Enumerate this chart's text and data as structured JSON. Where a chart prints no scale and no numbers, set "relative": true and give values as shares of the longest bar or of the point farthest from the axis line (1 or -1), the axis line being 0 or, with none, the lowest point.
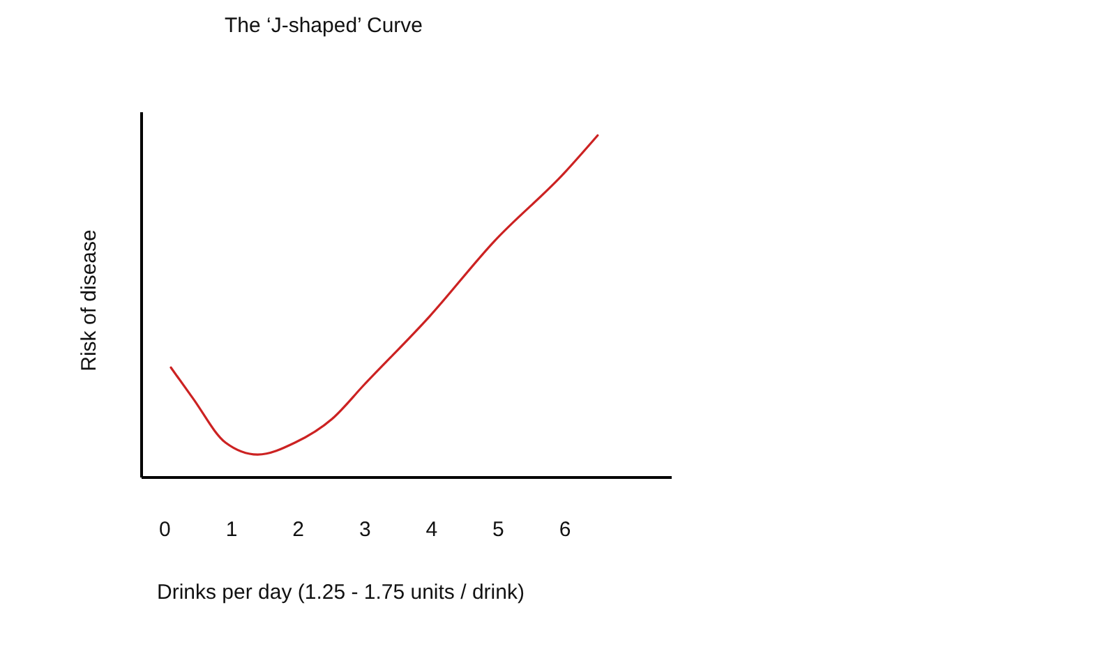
{
  "chart_data": {
    "type": "line",
    "title": "The ‘J-shaped’ Curve",
    "xlabel": "Drinks per day (1.25 - 1.75 units / drink)",
    "ylabel": "Risk of disease",
    "relative": true,
    "xlim": [
      -0.35,
      7.6
    ],
    "xticks": [
      0,
      1,
      2,
      3,
      4,
      5,
      6
    ],
    "grid": false,
    "series": [
      {
        "color": "#cc2222",
        "x": [
          0.1,
          0.43,
          0.92,
          1.4,
          1.96,
          2.52,
          3.0,
          3.98,
          4.95,
          6.0,
          6.5
        ],
        "values": [
          0.32,
          0.23,
          0.1,
          0.065,
          0.1,
          0.17,
          0.27,
          0.47,
          0.69,
          0.89,
          1
        ]
      }
    ]
  }
}
